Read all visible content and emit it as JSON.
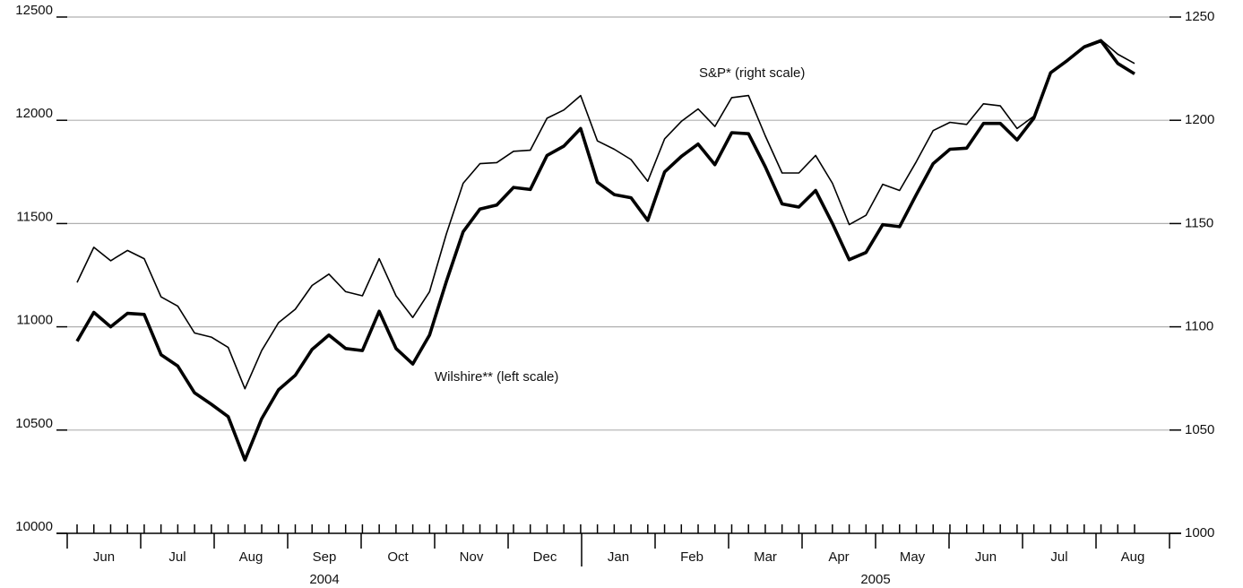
{
  "chart_data": {
    "type": "line",
    "annotations": [
      "S&P* (right scale)",
      "Wilshire** (left scale)"
    ],
    "categories": [
      null,
      null,
      null,
      null,
      null,
      null,
      null,
      null,
      null,
      null,
      null,
      null,
      null,
      null,
      null,
      null,
      null,
      null,
      null,
      null,
      null,
      null,
      null,
      null,
      null,
      null,
      null,
      null,
      null,
      null,
      null,
      null,
      null,
      null,
      null,
      null,
      null,
      null,
      null,
      null,
      null,
      null,
      null,
      null,
      null,
      null,
      null,
      null,
      null,
      null,
      null,
      null,
      null,
      null,
      null,
      null,
      null,
      null,
      null,
      null,
      null,
      null,
      null,
      null
    ],
    "x_groups": [
      {
        "label": "2004",
        "months": [
          "Jun",
          "Jul",
          "Aug",
          "Sep",
          "Oct",
          "Nov",
          "Dec"
        ]
      },
      {
        "label": "2005",
        "months": [
          "Jan",
          "Feb",
          "Mar",
          "Apr",
          "May",
          "Jun",
          "Jul",
          "Aug"
        ]
      }
    ],
    "series": [
      {
        "name": "Wilshire** (left scale)",
        "color": "#000000",
        "axis": "y",
        "values": [
          10930,
          11070,
          11000,
          11065,
          11060,
          10865,
          10810,
          10680,
          10625,
          10565,
          10355,
          10555,
          10695,
          10765,
          10890,
          10960,
          10895,
          10885,
          11075,
          10895,
          10820,
          10960,
          11220,
          11460,
          11570,
          11590,
          11675,
          11665,
          11830,
          11875,
          11960,
          11700,
          11640,
          11625,
          11515,
          11750,
          11825,
          11885,
          11785,
          11940,
          11935,
          11775,
          11595,
          11580,
          11660,
          11500,
          11325,
          11360,
          11495,
          11485,
          11640,
          11790,
          11860,
          11865,
          11985,
          11985,
          11905,
          12010,
          12230,
          12290,
          12355,
          12385,
          12275,
          12225
        ]
      },
      {
        "name": "S&P* (right scale)",
        "color": "#000000",
        "axis": "y2",
        "values": [
          1121.5,
          1138.5,
          1132,
          1137,
          1133,
          1114.5,
          1110,
          1097,
          1095,
          1090,
          1070,
          1088.5,
          1102,
          1108.5,
          1120,
          1125.5,
          1117,
          1115,
          1133,
          1115,
          1104.5,
          1117,
          1145,
          1169.5,
          1179,
          1179.5,
          1185,
          1185.5,
          1201,
          1205,
          1212,
          1190,
          1186,
          1181,
          1170.5,
          1191,
          1199.5,
          1205.5,
          1197,
          1211,
          1212,
          1192.5,
          1174.5,
          1174.5,
          1183,
          1169.5,
          1149.5,
          1154,
          1169,
          1166,
          1180,
          1195,
          1199,
          1198,
          1208,
          1207,
          1196,
          1202,
          1223,
          1229.5,
          1236,
          1239,
          1232,
          1227.5
        ]
      }
    ],
    "ylim": [
      10000,
      12500
    ],
    "yticks": [
      10000,
      10500,
      11000,
      11500,
      12000,
      12500
    ],
    "y2lim": [
      1000,
      1250
    ],
    "y2ticks": [
      1000,
      1050,
      1100,
      1150,
      1200,
      1250
    ],
    "grid": true
  }
}
